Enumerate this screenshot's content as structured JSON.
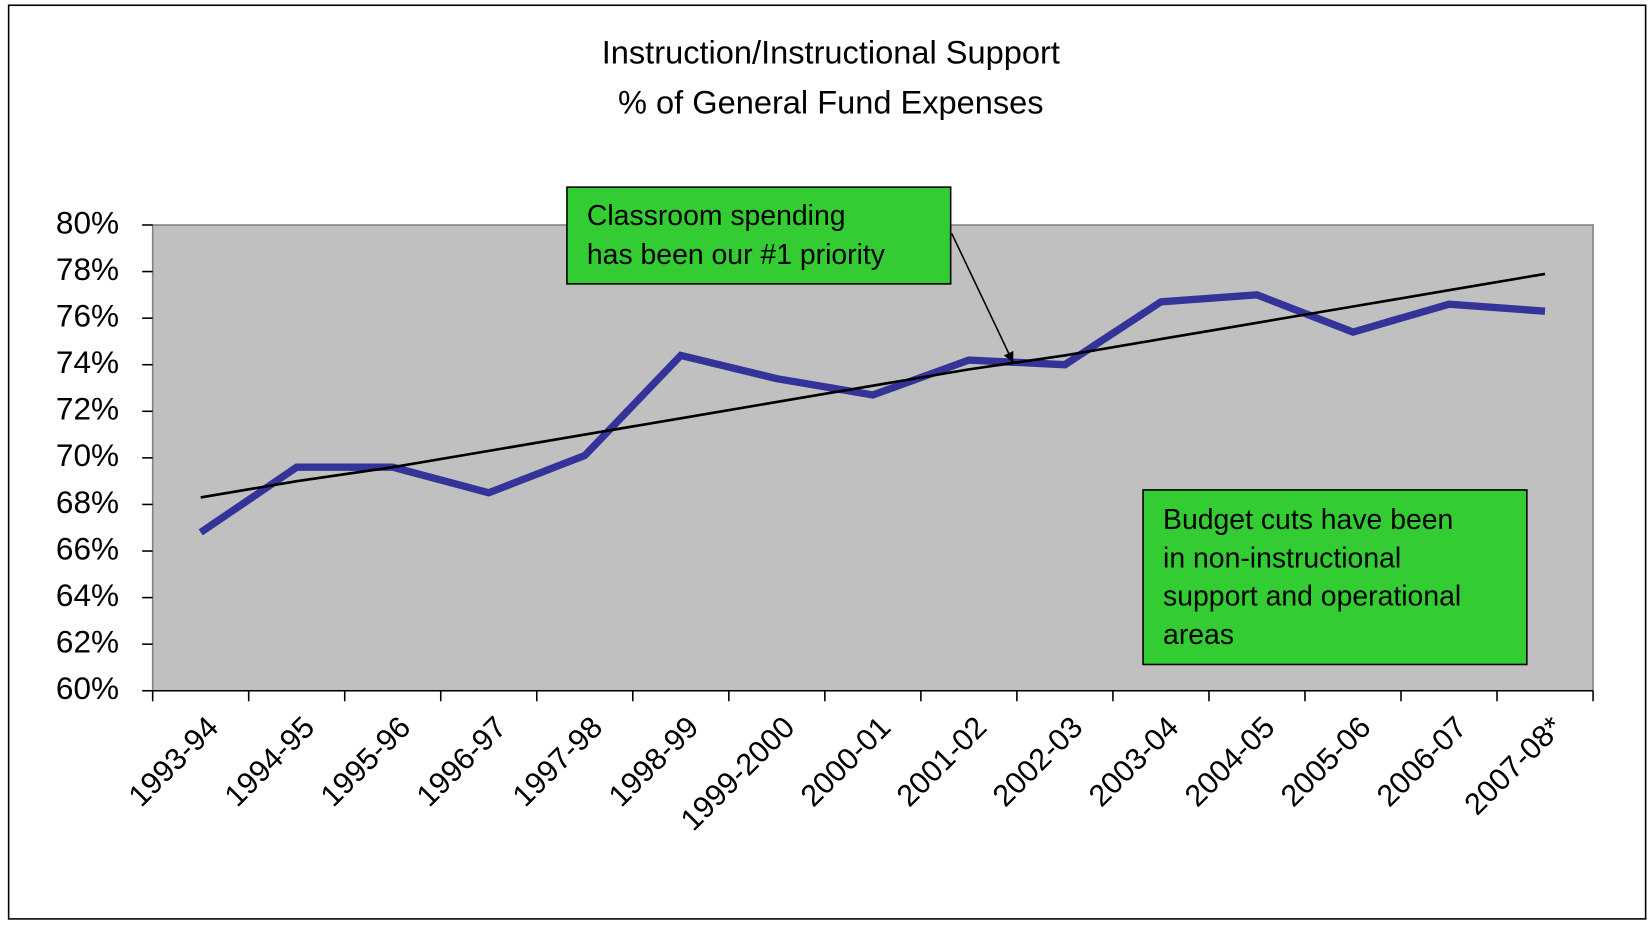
{
  "chart_data": {
    "type": "line",
    "title": "Instruction/Instructional Support",
    "subtitle": "% of General Fund Expenses",
    "categories": [
      "1993-94",
      "1994-95",
      "1995-96",
      "1996-97",
      "1997-98",
      "1998-99",
      "1999-2000",
      "2000-01",
      "2001-02",
      "2002-03",
      "2003-04",
      "2004-05",
      "2005-06",
      "2006-07",
      "2007-08*"
    ],
    "series": [
      {
        "color": "#333399",
        "values": [
          66.8,
          69.6,
          69.6,
          68.5,
          70.1,
          74.4,
          73.4,
          72.7,
          74.2,
          74.0,
          76.7,
          77.0,
          75.4,
          76.6,
          76.3
        ]
      },
      {
        "color": "#000000",
        "values": [
          68.3,
          69.0,
          69.6,
          70.3,
          71.0,
          71.7,
          72.4,
          73.1,
          73.8,
          74.4,
          75.1,
          75.8,
          76.5,
          77.2,
          77.9
        ]
      }
    ],
    "ylim": [
      60,
      80
    ],
    "yticks": [
      {
        "value": 60,
        "label": "60%"
      },
      {
        "value": 62,
        "label": "62%"
      },
      {
        "value": 64,
        "label": "64%"
      },
      {
        "value": 66,
        "label": "66%"
      },
      {
        "value": 68,
        "label": "68%"
      },
      {
        "value": 70,
        "label": "70%"
      },
      {
        "value": 72,
        "label": "72%"
      },
      {
        "value": 74,
        "label": "74%"
      },
      {
        "value": 76,
        "label": "76%"
      },
      {
        "value": 78,
        "label": "78%"
      },
      {
        "value": 80,
        "label": "80%"
      }
    ],
    "annotations": [
      {
        "lines": [
          "Classroom spending",
          "has been our #1 priority"
        ]
      },
      {
        "lines": [
          "Budget cuts have been",
          "in non-instructional",
          "support and operational",
          "areas"
        ]
      }
    ]
  }
}
